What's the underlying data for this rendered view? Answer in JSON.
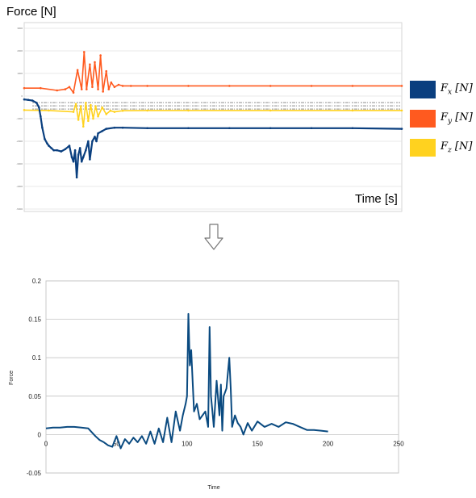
{
  "chart_data": [
    {
      "type": "line",
      "ylabel": "Force [N]",
      "xlabel": "Time [s]",
      "y_ticks": [
        "3000",
        "2000",
        "1000",
        "0",
        "-1000",
        "-2000",
        "-3000",
        "-4000",
        "-5000"
      ],
      "ylim": [
        -5000,
        3000
      ],
      "grid": true,
      "legend_position": "right",
      "series": [
        {
          "name": "Fx",
          "legend_main": "F",
          "legend_sub": "x",
          "legend_unit": "[N]",
          "color": "#0a3f7f",
          "x": [
            0,
            5,
            10,
            15,
            18,
            20,
            22,
            25,
            28,
            30,
            33,
            36,
            40,
            45,
            50,
            55,
            58,
            60,
            62,
            64,
            66,
            68,
            70,
            72,
            75,
            78,
            80,
            83,
            86,
            88,
            90,
            95,
            100,
            110,
            120,
            150,
            200,
            250,
            300,
            350,
            400,
            460
          ],
          "y": [
            -150,
            -170,
            -200,
            -300,
            -500,
            -900,
            -1400,
            -1900,
            -2100,
            -2200,
            -2300,
            -2400,
            -2400,
            -2450,
            -2350,
            -2200,
            -2700,
            -2900,
            -2400,
            -3600,
            -2600,
            -2300,
            -2900,
            -2700,
            -2400,
            -2000,
            -2800,
            -2000,
            -1800,
            -2000,
            -1650,
            -1550,
            -1450,
            -1400,
            -1400,
            -1420,
            -1420,
            -1420,
            -1420,
            -1420,
            -1420,
            -1450
          ]
        },
        {
          "name": "Fy",
          "legend_main": "F",
          "legend_sub": "y",
          "legend_unit": "[N]",
          "color": "#ff5a1f",
          "x": [
            0,
            20,
            40,
            50,
            55,
            60,
            65,
            70,
            73,
            76,
            80,
            83,
            86,
            90,
            93,
            96,
            100,
            103,
            106,
            110,
            115,
            120,
            130,
            150,
            200,
            250,
            300,
            350,
            400,
            460
          ],
          "y": [
            350,
            350,
            250,
            300,
            400,
            150,
            1150,
            300,
            1950,
            300,
            1400,
            400,
            1500,
            300,
            1800,
            200,
            1100,
            300,
            600,
            400,
            500,
            450,
            450,
            450,
            450,
            450,
            450,
            450,
            450,
            450
          ]
        },
        {
          "name": "Fz",
          "legend_main": "F",
          "legend_sub": "z",
          "legend_unit": "[N]",
          "color": "#ffd21f",
          "x": [
            0,
            30,
            60,
            63,
            66,
            69,
            72,
            75,
            78,
            81,
            84,
            87,
            90,
            95,
            100,
            105,
            110,
            120,
            150,
            200,
            300,
            400,
            460
          ],
          "y": [
            -620,
            -640,
            -700,
            -350,
            -1050,
            -450,
            -1350,
            -300,
            -1100,
            -400,
            -1000,
            -450,
            -900,
            -500,
            -800,
            -650,
            -700,
            -650,
            -640,
            -640,
            -640,
            -640,
            -640
          ]
        }
      ]
    },
    {
      "type": "line",
      "xlabel": "Time",
      "ylabel": "Force",
      "xlim": [
        0,
        250
      ],
      "ylim": [
        -0.05,
        0.2
      ],
      "x_ticks": [
        "0",
        "50",
        "100",
        "150",
        "200",
        "250"
      ],
      "y_ticks": [
        "0.2",
        "0.15",
        "0.1",
        "0.05",
        "0",
        "-0.05"
      ],
      "grid": true,
      "series": [
        {
          "color": "#0a4a80",
          "x": [
            0,
            5,
            10,
            15,
            20,
            25,
            30,
            35,
            38,
            41,
            44,
            47,
            50,
            53,
            56,
            59,
            62,
            65,
            68,
            71,
            74,
            77,
            80,
            83,
            86,
            89,
            92,
            95,
            97,
            99,
            100,
            101,
            102,
            103,
            105,
            107,
            109,
            111,
            113,
            115,
            116,
            117,
            118,
            119,
            121,
            123,
            124,
            125,
            126,
            128,
            130,
            131,
            132,
            134,
            136,
            138,
            140,
            143,
            146,
            150,
            155,
            160,
            165,
            170,
            175,
            180,
            185,
            190,
            195,
            200
          ],
          "y": [
            0.008,
            0.009,
            0.009,
            0.01,
            0.01,
            0.009,
            0.008,
            -0.002,
            -0.007,
            -0.01,
            -0.014,
            -0.016,
            -0.002,
            -0.018,
            -0.006,
            -0.012,
            -0.004,
            -0.01,
            -0.002,
            -0.012,
            0.004,
            -0.012,
            0.008,
            -0.01,
            0.022,
            -0.01,
            0.03,
            0.005,
            0.025,
            0.04,
            0.05,
            0.157,
            0.09,
            0.11,
            0.03,
            0.04,
            0.02,
            0.025,
            0.03,
            0.01,
            0.14,
            0.05,
            0.03,
            0.01,
            0.07,
            0.025,
            0.065,
            0.005,
            0.05,
            0.06,
            0.1,
            0.06,
            0.01,
            0.025,
            0.015,
            0.01,
            0.0,
            0.015,
            0.005,
            0.017,
            0.01,
            0.014,
            0.01,
            0.016,
            0.014,
            0.01,
            0.006,
            0.006,
            0.005,
            0.004
          ]
        }
      ]
    }
  ]
}
